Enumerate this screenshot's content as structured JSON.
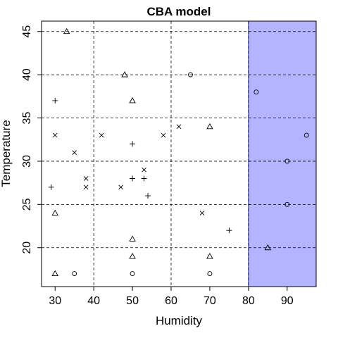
{
  "chart_data": {
    "type": "scatter",
    "title": "CBA model",
    "xlabel": "Humidity",
    "ylabel": "Temperature",
    "xlim": [
      26.5,
      97.5
    ],
    "ylim": [
      15.5,
      46.2
    ],
    "x_ticks": [
      30,
      40,
      50,
      60,
      70,
      80,
      90
    ],
    "y_ticks": [
      20,
      25,
      30,
      35,
      40,
      45
    ],
    "grid": "dashed",
    "x_gridlines": [
      40,
      60,
      80
    ],
    "y_gridlines": [
      20,
      25,
      30,
      35,
      40,
      45
    ],
    "highlight_region": {
      "x_min": 80,
      "x_max": 97.5,
      "color": "#b3b3ff",
      "edge_color": "#2b2bb8"
    },
    "series": [
      {
        "marker": "triangle",
        "points": [
          {
            "x": 33,
            "y": 45
          },
          {
            "x": 48,
            "y": 40
          },
          {
            "x": 50,
            "y": 37
          },
          {
            "x": 70,
            "y": 34
          },
          {
            "x": 30,
            "y": 24
          },
          {
            "x": 50,
            "y": 21
          },
          {
            "x": 50,
            "y": 19
          },
          {
            "x": 70,
            "y": 19
          },
          {
            "x": 85,
            "y": 20
          },
          {
            "x": 30,
            "y": 17
          }
        ]
      },
      {
        "marker": "circle",
        "points": [
          {
            "x": 65,
            "y": 40
          },
          {
            "x": 82,
            "y": 38
          },
          {
            "x": 95,
            "y": 33
          },
          {
            "x": 90,
            "y": 30
          },
          {
            "x": 90,
            "y": 25
          },
          {
            "x": 35,
            "y": 17
          },
          {
            "x": 50,
            "y": 17
          },
          {
            "x": 70,
            "y": 17
          }
        ]
      },
      {
        "marker": "plus",
        "points": [
          {
            "x": 30,
            "y": 37
          },
          {
            "x": 50,
            "y": 32
          },
          {
            "x": 29,
            "y": 27
          },
          {
            "x": 50,
            "y": 28
          },
          {
            "x": 53,
            "y": 28
          },
          {
            "x": 54,
            "y": 26
          },
          {
            "x": 75,
            "y": 22
          }
        ]
      },
      {
        "marker": "cross",
        "points": [
          {
            "x": 30,
            "y": 33
          },
          {
            "x": 42,
            "y": 33
          },
          {
            "x": 58,
            "y": 33
          },
          {
            "x": 62,
            "y": 34
          },
          {
            "x": 35,
            "y": 31
          },
          {
            "x": 38,
            "y": 28
          },
          {
            "x": 38,
            "y": 27
          },
          {
            "x": 47,
            "y": 27
          },
          {
            "x": 53,
            "y": 29
          },
          {
            "x": 68,
            "y": 24
          }
        ]
      }
    ]
  }
}
